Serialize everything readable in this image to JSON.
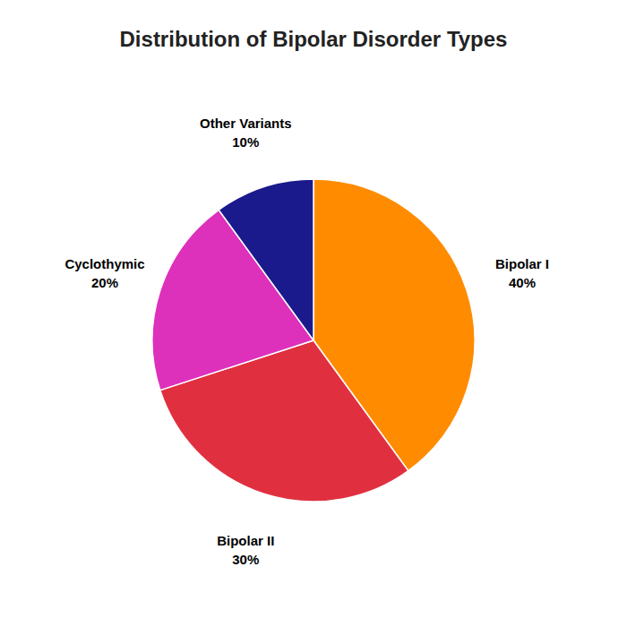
{
  "chart_data": {
    "type": "pie",
    "title": "Distribution of Bipolar Disorder Types",
    "categories": [
      "Bipolar I",
      "Bipolar II",
      "Cyclothymic",
      "Other Variants"
    ],
    "values": [
      40,
      30,
      20,
      10
    ],
    "value_labels": [
      "40%",
      "30%",
      "20%",
      "10%"
    ],
    "colors": [
      "#FF8C00",
      "#E03040",
      "#DD30BB",
      "#1A1A8C"
    ],
    "data_labels": true
  }
}
